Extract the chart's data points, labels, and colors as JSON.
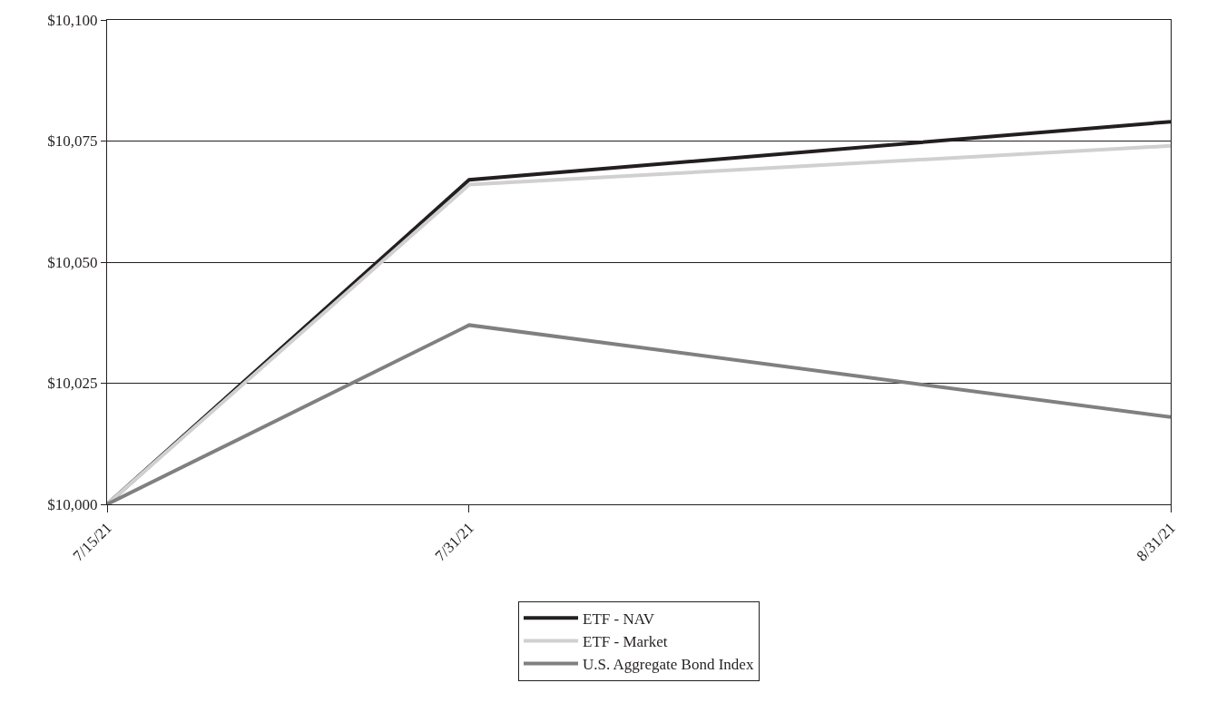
{
  "chart_data": {
    "type": "line",
    "x": [
      "2021-07-15",
      "2021-07-31",
      "2021-08-31"
    ],
    "series": [
      {
        "name": "ETF - NAV",
        "color": "#231f20",
        "values": [
          10000,
          10067,
          10079
        ]
      },
      {
        "name": "ETF - Market",
        "color": "#d0d0d0",
        "values": [
          10000,
          10066,
          10074
        ]
      },
      {
        "name": "U.S. Aggregate Bond Index",
        "color": "#808080",
        "values": [
          10000,
          10037,
          10018
        ]
      }
    ],
    "xlim": [
      "2021-07-15",
      "2021-08-31"
    ],
    "xticks": [
      {
        "value": "2021-07-15",
        "label": "7/15/21"
      },
      {
        "value": "2021-07-31",
        "label": "7/31/21"
      },
      {
        "value": "2021-08-31",
        "label": "8/31/21"
      }
    ],
    "ylim": [
      10000,
      10100
    ],
    "yticks": [
      {
        "value": 10000,
        "label": "$10,000"
      },
      {
        "value": 10025,
        "label": "$10,025"
      },
      {
        "value": 10050,
        "label": "$10,050"
      },
      {
        "value": 10075,
        "label": "$10,075"
      },
      {
        "value": 10100,
        "label": "$10,100"
      }
    ],
    "grid": "y",
    "legend": "bottom",
    "marker": "none",
    "line_style": "solid"
  }
}
